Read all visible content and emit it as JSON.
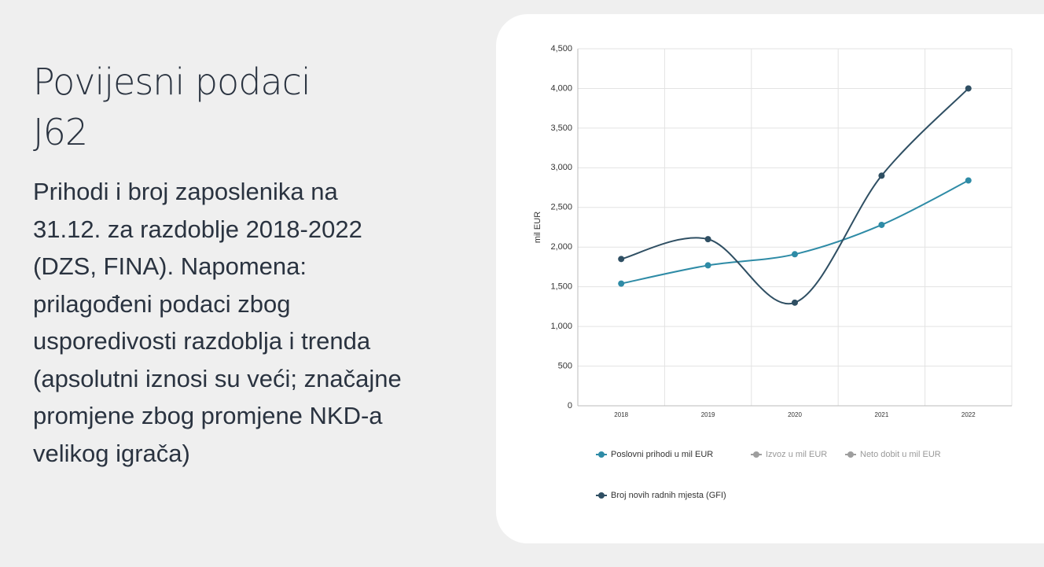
{
  "heading": "Povijesni podaci J62",
  "description": "Prihodi i broj zaposlenika na 31.12. za razdoblje 2018-2022 (DZS, FINA). Napomena: prilagođeni podaci zbog usporedivosti razdoblja i trenda (apsolutni iznosi su veći; značajne promjene zbog promjene NKD-a velikog igrača)",
  "chart_data": {
    "type": "line",
    "y_label": "mil EUR",
    "categories": [
      "2018",
      "2019",
      "2020",
      "2021",
      "2022"
    ],
    "series": [
      {
        "name": "Poslovni prihodi u mil EUR",
        "color": "#2e8ba6",
        "values": [
          1540,
          1770,
          1910,
          2280,
          2840
        ]
      },
      {
        "name": "Izvoz u mil EUR",
        "color": "#9e9e9e",
        "values": [
          null,
          null,
          null,
          null,
          null
        ]
      },
      {
        "name": "Neto dobit u mil EUR",
        "color": "#9e9e9e",
        "values": [
          null,
          null,
          null,
          null,
          null
        ]
      },
      {
        "name": "Broj novih radnih mjesta (GFI)",
        "color": "#2f4f63",
        "values": [
          1850,
          2100,
          1300,
          2900,
          4000
        ]
      }
    ],
    "ylim": [
      0,
      4500
    ],
    "yticks": [
      0,
      500,
      {
        "value": 1000,
        "label": "1,000"
      },
      {
        "value": 1500,
        "label": "1,500"
      },
      {
        "value": 2000,
        "label": "2,000"
      },
      {
        "value": 2500,
        "label": "2,500"
      },
      {
        "value": 3000,
        "label": "3,000"
      },
      {
        "value": 3500,
        "label": "3,500"
      },
      {
        "value": 4000,
        "label": "4,000"
      },
      {
        "value": 4500,
        "label": "4,500"
      }
    ],
    "grid": true
  }
}
